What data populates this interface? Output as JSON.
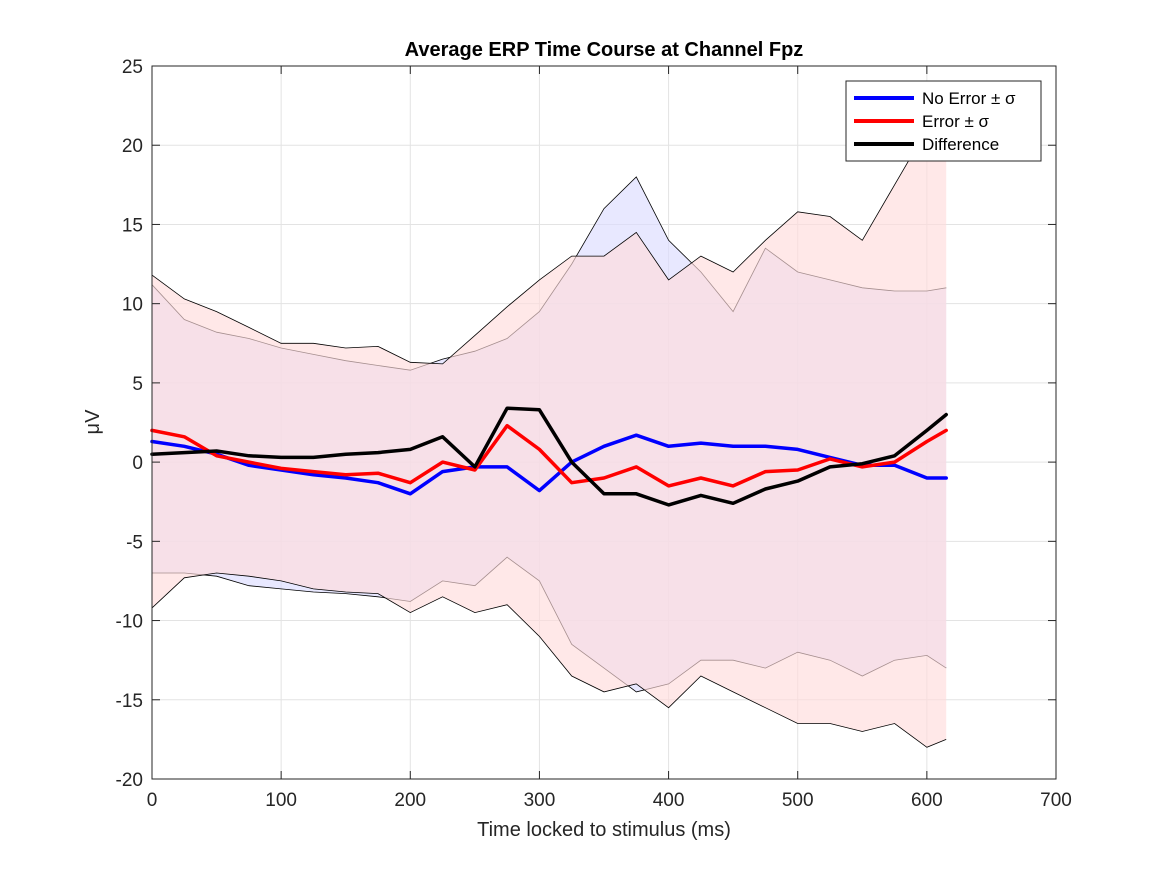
{
  "chart_data": {
    "type": "line",
    "title": "Average ERP Time Course at Channel Fpz",
    "xlabel": "Time locked to stimulus (ms)",
    "ylabel": "μV",
    "xlim": [
      0,
      700
    ],
    "ylim": [
      -20,
      25
    ],
    "xticks": [
      0,
      100,
      200,
      300,
      400,
      500,
      600,
      700
    ],
    "yticks": [
      -20,
      -15,
      -10,
      -5,
      0,
      5,
      10,
      15,
      20,
      25
    ],
    "grid": true,
    "legend_position": "top-right",
    "legend": [
      "No Error ± σ",
      "Error ± σ",
      "Difference"
    ],
    "x": [
      0,
      25,
      50,
      75,
      100,
      125,
      150,
      175,
      200,
      225,
      250,
      275,
      300,
      325,
      350,
      375,
      400,
      425,
      450,
      475,
      500,
      525,
      550,
      575,
      600,
      615
    ],
    "series": [
      {
        "name": "No Error ± σ",
        "color": "#0000ff",
        "fill": "#dcdcff",
        "mean": [
          1.3,
          1.0,
          0.5,
          -0.2,
          -0.5,
          -0.8,
          -1.0,
          -1.3,
          -2.0,
          -0.6,
          -0.3,
          -0.3,
          -1.8,
          0.0,
          1.0,
          1.7,
          1.0,
          1.2,
          1.0,
          1.0,
          0.8,
          0.3,
          -0.2,
          -0.2,
          -1.0,
          -1.0
        ],
        "upper": [
          11.2,
          9.0,
          8.2,
          7.8,
          7.2,
          6.8,
          6.4,
          6.1,
          5.8,
          6.5,
          7.0,
          7.8,
          9.5,
          12.5,
          16.0,
          18.0,
          14.0,
          12.0,
          9.5,
          13.5,
          12.0,
          11.5,
          11.0,
          10.8,
          10.8,
          11.0
        ],
        "lower": [
          -7.0,
          -7.0,
          -7.2,
          -7.8,
          -8.0,
          -8.2,
          -8.3,
          -8.5,
          -8.8,
          -7.5,
          -7.8,
          -6.0,
          -7.5,
          -11.5,
          -13.0,
          -14.5,
          -14.0,
          -12.5,
          -12.5,
          -13.0,
          -12.0,
          -12.5,
          -13.5,
          -12.5,
          -12.2,
          -13.0
        ]
      },
      {
        "name": "Error ± σ",
        "color": "#ff0000",
        "fill": "#ffdcdc",
        "mean": [
          2.0,
          1.6,
          0.4,
          0.0,
          -0.4,
          -0.6,
          -0.8,
          -0.7,
          -1.3,
          0.0,
          -0.5,
          2.3,
          0.8,
          -1.3,
          -1.0,
          -0.3,
          -1.5,
          -1.0,
          -1.5,
          -0.6,
          -0.5,
          0.2,
          -0.3,
          0.0,
          1.3,
          2.0
        ],
        "upper": [
          11.8,
          10.3,
          9.5,
          8.5,
          7.5,
          7.5,
          7.2,
          7.3,
          6.3,
          6.2,
          8.0,
          9.8,
          11.5,
          13.0,
          13.0,
          14.5,
          11.5,
          13.0,
          12.0,
          14.0,
          15.8,
          15.5,
          14.0,
          17.5,
          21.0,
          23.5
        ],
        "lower": [
          -9.2,
          -7.3,
          -7.0,
          -7.2,
          -7.5,
          -8.0,
          -8.2,
          -8.3,
          -9.5,
          -8.5,
          -9.5,
          -9.0,
          -11.0,
          -13.5,
          -14.5,
          -14.0,
          -15.5,
          -13.5,
          -14.5,
          -15.5,
          -16.5,
          -16.5,
          -17.0,
          -16.5,
          -18.0,
          -17.5
        ]
      },
      {
        "name": "Difference",
        "color": "#000000",
        "mean": [
          0.5,
          0.6,
          0.7,
          0.4,
          0.3,
          0.3,
          0.5,
          0.6,
          0.8,
          1.6,
          -0.3,
          3.4,
          3.3,
          0.0,
          -2.0,
          -2.0,
          -2.7,
          -2.1,
          -2.6,
          -1.7,
          -1.2,
          -0.3,
          -0.1,
          0.4,
          2.0,
          3.0
        ]
      }
    ]
  }
}
